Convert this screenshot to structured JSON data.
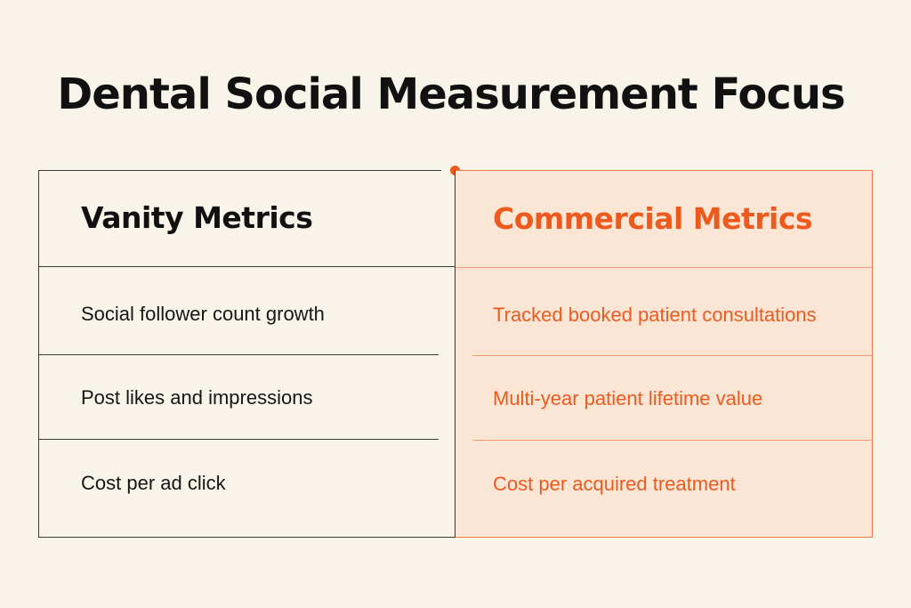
{
  "title": "Dental Social Measurement Focus",
  "accent_color": "#ee5a1e",
  "left": {
    "header": "Vanity Metrics",
    "rows": [
      "Social follower count growth",
      "Post likes and impressions",
      "Cost per ad click"
    ]
  },
  "right": {
    "header": "Commercial Metrics",
    "rows": [
      "Tracked booked patient consultations",
      "Multi-year patient lifetime value",
      "Cost per acquired treatment"
    ]
  }
}
